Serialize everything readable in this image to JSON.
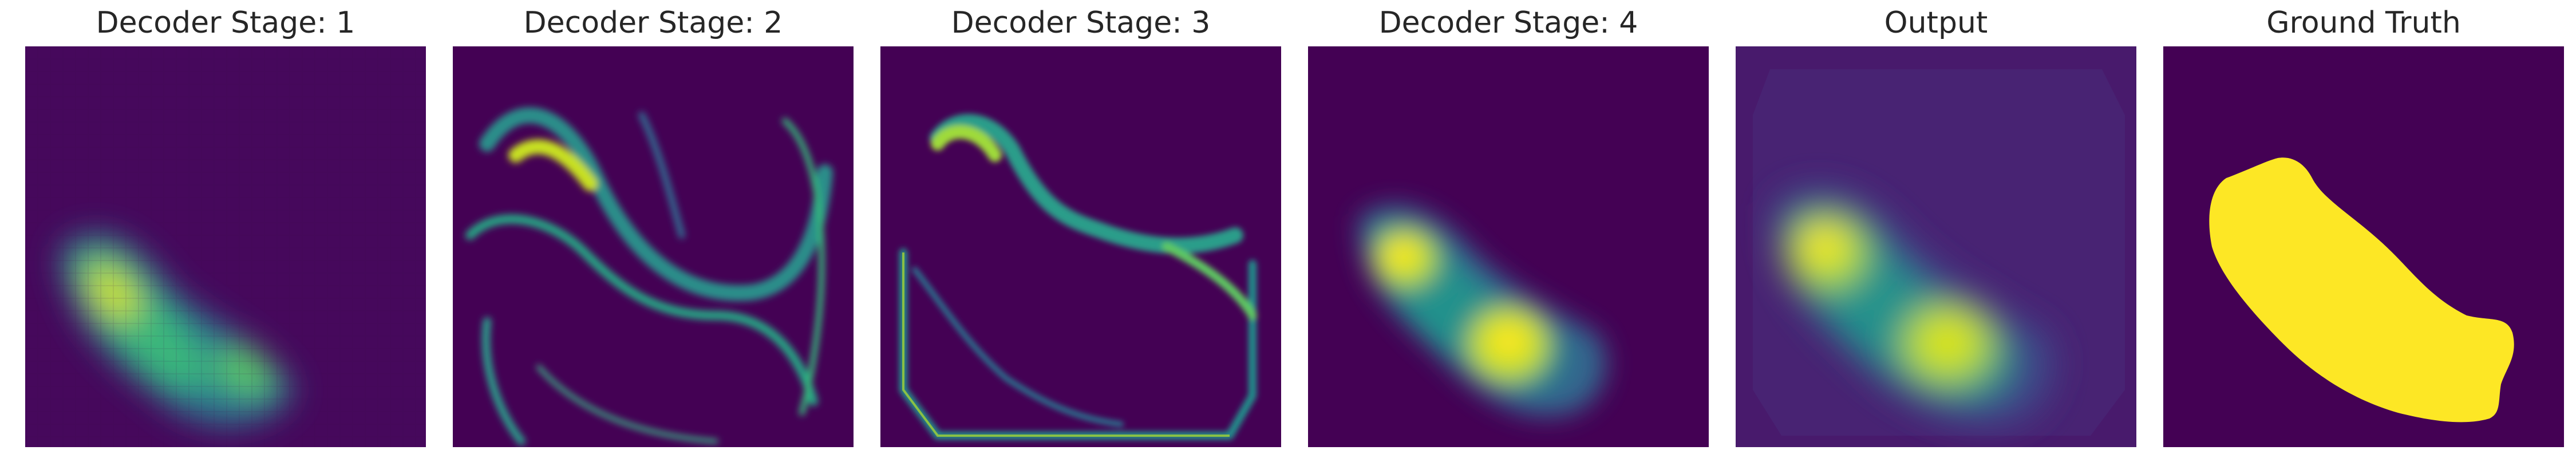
{
  "figure": {
    "panels": [
      {
        "title": "Decoder Stage: 1"
      },
      {
        "title": "Decoder Stage: 2"
      },
      {
        "title": "Decoder Stage: 3"
      },
      {
        "title": "Decoder Stage: 4"
      },
      {
        "title": "Output"
      },
      {
        "title": "Ground Truth"
      }
    ],
    "colormap": "viridis",
    "colors": {
      "background_low": "#440154",
      "mid": "#21918c",
      "high": "#fde725"
    }
  }
}
